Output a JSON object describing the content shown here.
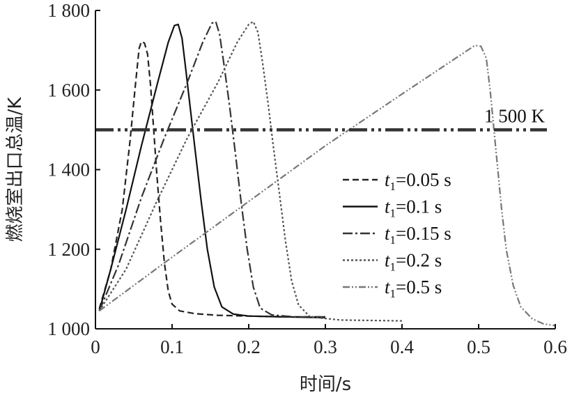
{
  "chart_data": {
    "type": "line",
    "xlabel": "时间/s",
    "ylabel": "燃烧室出口总温/K",
    "xlim": [
      0,
      0.6
    ],
    "ylim": [
      1000,
      1800
    ],
    "xticks": [
      0,
      0.1,
      0.2,
      0.3,
      0.4,
      0.5,
      0.6
    ],
    "xtick_labels": [
      "0",
      "0.1",
      "0.2",
      "0.3",
      "0.4",
      "0.5",
      "0.6"
    ],
    "yticks": [
      1000,
      1200,
      1400,
      1600,
      1800
    ],
    "ytick_labels": [
      "1 000",
      "1 200",
      "1 400",
      "1 600",
      "1 800"
    ],
    "grid": false,
    "legend_position": "right",
    "reference_line": {
      "y": 1500,
      "label": "1 500 K",
      "color": "#333333"
    },
    "series": [
      {
        "name": "t1=0.05 s",
        "name_var": "t",
        "name_sub": "1",
        "name_rest": "=0.05 s",
        "style": "dashed",
        "color": "#222222",
        "points": [
          [
            0.005,
            1050
          ],
          [
            0.02,
            1150
          ],
          [
            0.035,
            1300
          ],
          [
            0.045,
            1470
          ],
          [
            0.052,
            1610
          ],
          [
            0.057,
            1705
          ],
          [
            0.06,
            1722
          ],
          [
            0.064,
            1718
          ],
          [
            0.068,
            1690
          ],
          [
            0.072,
            1610
          ],
          [
            0.076,
            1500
          ],
          [
            0.08,
            1390
          ],
          [
            0.085,
            1270
          ],
          [
            0.09,
            1165
          ],
          [
            0.095,
            1095
          ],
          [
            0.1,
            1062
          ],
          [
            0.11,
            1045
          ],
          [
            0.13,
            1038
          ],
          [
            0.16,
            1034
          ],
          [
            0.2,
            1032
          ],
          [
            0.25,
            1030
          ],
          [
            0.3,
            1030
          ]
        ]
      },
      {
        "name": "t1=0.1 s",
        "name_var": "t",
        "name_sub": "1",
        "name_rest": "=0.1 s",
        "style": "solid",
        "color": "#111111",
        "points": [
          [
            0.005,
            1045
          ],
          [
            0.02,
            1150
          ],
          [
            0.04,
            1300
          ],
          [
            0.06,
            1460
          ],
          [
            0.08,
            1610
          ],
          [
            0.095,
            1720
          ],
          [
            0.103,
            1762
          ],
          [
            0.108,
            1765
          ],
          [
            0.113,
            1730
          ],
          [
            0.118,
            1650
          ],
          [
            0.124,
            1550
          ],
          [
            0.13,
            1450
          ],
          [
            0.138,
            1320
          ],
          [
            0.146,
            1200
          ],
          [
            0.155,
            1105
          ],
          [
            0.165,
            1055
          ],
          [
            0.18,
            1037
          ],
          [
            0.2,
            1032
          ],
          [
            0.25,
            1030
          ],
          [
            0.3,
            1028
          ]
        ]
      },
      {
        "name": "t1=0.15 s",
        "name_var": "t",
        "name_sub": "1",
        "name_rest": "=0.15 s",
        "style": "dashdot",
        "color": "#333333",
        "points": [
          [
            0.005,
            1045
          ],
          [
            0.03,
            1160
          ],
          [
            0.06,
            1330
          ],
          [
            0.09,
            1480
          ],
          [
            0.12,
            1620
          ],
          [
            0.14,
            1720
          ],
          [
            0.152,
            1768
          ],
          [
            0.157,
            1772
          ],
          [
            0.162,
            1740
          ],
          [
            0.168,
            1660
          ],
          [
            0.175,
            1560
          ],
          [
            0.182,
            1450
          ],
          [
            0.19,
            1320
          ],
          [
            0.198,
            1200
          ],
          [
            0.206,
            1105
          ],
          [
            0.215,
            1052
          ],
          [
            0.23,
            1035
          ],
          [
            0.26,
            1030
          ],
          [
            0.3,
            1030
          ]
        ]
      },
      {
        "name": "t1=0.2 s",
        "name_var": "t",
        "name_sub": "1",
        "name_rest": "=0.2 s",
        "style": "dotted",
        "color": "#555555",
        "points": [
          [
            0.005,
            1045
          ],
          [
            0.04,
            1150
          ],
          [
            0.08,
            1320
          ],
          [
            0.12,
            1480
          ],
          [
            0.16,
            1620
          ],
          [
            0.185,
            1720
          ],
          [
            0.2,
            1765
          ],
          [
            0.206,
            1772
          ],
          [
            0.212,
            1745
          ],
          [
            0.218,
            1670
          ],
          [
            0.225,
            1570
          ],
          [
            0.232,
            1460
          ],
          [
            0.24,
            1340
          ],
          [
            0.248,
            1220
          ],
          [
            0.256,
            1120
          ],
          [
            0.265,
            1060
          ],
          [
            0.28,
            1030
          ],
          [
            0.32,
            1022
          ],
          [
            0.4,
            1020
          ]
        ]
      },
      {
        "name": "t1=0.5 s",
        "name_var": "t",
        "name_sub": "1",
        "name_rest": "=0.5 s",
        "style": "dashdotdot",
        "color": "#777777",
        "points": [
          [
            0.005,
            1045
          ],
          [
            0.1,
            1180
          ],
          [
            0.2,
            1320
          ],
          [
            0.3,
            1460
          ],
          [
            0.4,
            1590
          ],
          [
            0.47,
            1680
          ],
          [
            0.495,
            1712
          ],
          [
            0.503,
            1710
          ],
          [
            0.51,
            1680
          ],
          [
            0.515,
            1600
          ],
          [
            0.52,
            1500
          ],
          [
            0.525,
            1400
          ],
          [
            0.53,
            1300
          ],
          [
            0.536,
            1200
          ],
          [
            0.545,
            1110
          ],
          [
            0.555,
            1055
          ],
          [
            0.57,
            1025
          ],
          [
            0.585,
            1012
          ],
          [
            0.6,
            1008
          ]
        ]
      }
    ]
  }
}
